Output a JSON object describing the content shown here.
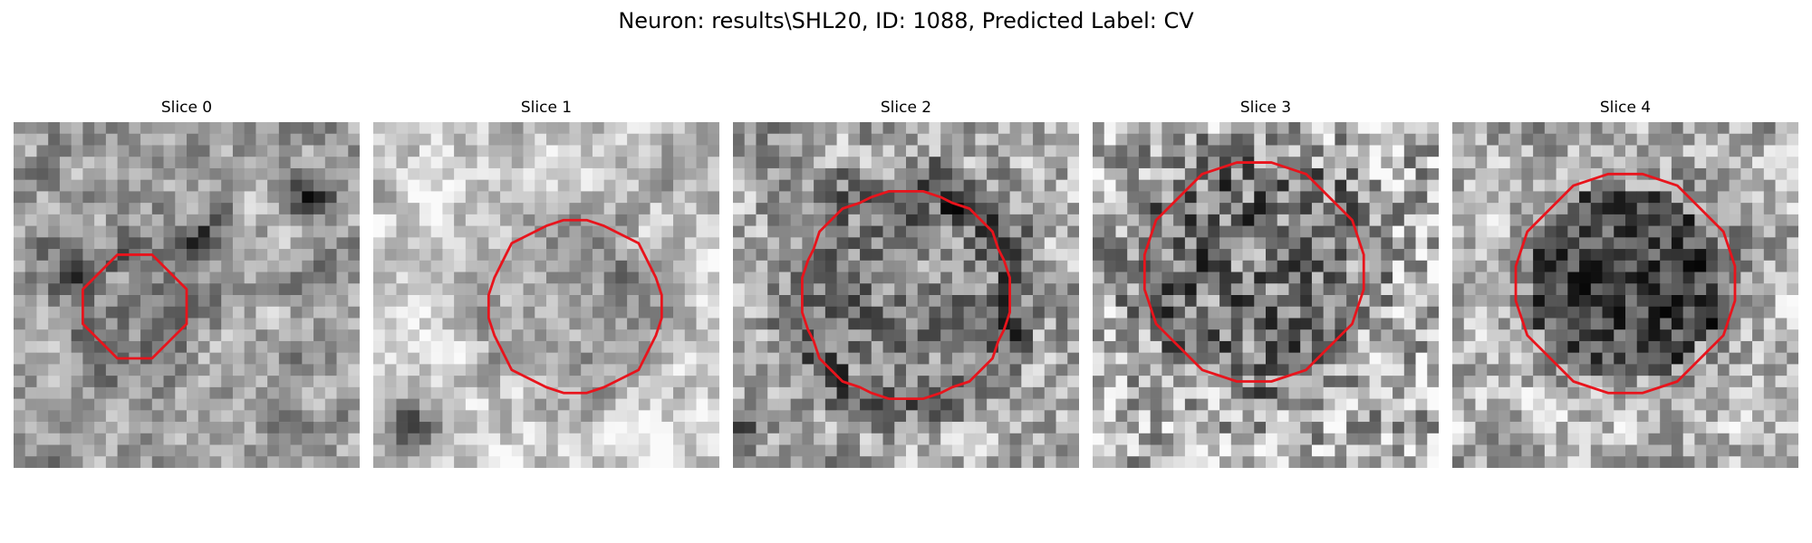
{
  "figure": {
    "title": "Neuron: results\\SHL20, ID: 1088, Predicted Label: CV"
  },
  "colors": {
    "contour": "#e8141c",
    "background": "#ffffff"
  },
  "image": {
    "colormap": "gray",
    "grid_size": 30,
    "axes": "off"
  },
  "slices": [
    {
      "title": "Slice 0",
      "seed": 11,
      "smooth": 0.55,
      "base": 0.62,
      "dark_ring": 0.38,
      "inner": 0.55,
      "center": [
        16,
        10.5
      ],
      "radius": 4.5,
      "darkspots": [
        [
          6,
          25,
          0.45,
          3
        ],
        [
          9,
          16,
          0.35,
          3
        ],
        [
          12,
          4,
          0.3,
          4
        ]
      ]
    },
    {
      "title": "Slice 1",
      "seed": 23,
      "smooth": 0.6,
      "base": 0.8,
      "dark_ring": 0.25,
      "inner": 0.62,
      "center": [
        16,
        17.5
      ],
      "radius": 7.5,
      "darkspots": [
        [
          26,
          3,
          0.6,
          3
        ],
        [
          3,
          25,
          0.35,
          3
        ],
        [
          1,
          12,
          0.2,
          3
        ]
      ]
    },
    {
      "title": "Slice 2",
      "seed": 37,
      "smooth": 0.35,
      "base": 0.65,
      "dark_ring": 0.5,
      "inner": 0.5,
      "center": [
        15,
        15
      ],
      "radius": 9.0,
      "darkspots": [
        [
          26,
          1,
          0.4,
          2
        ],
        [
          7,
          19,
          0.4,
          2
        ]
      ]
    },
    {
      "title": "Slice 3",
      "seed": 51,
      "smooth": 0.1,
      "base": 0.68,
      "dark_ring": 0.3,
      "inner": 0.45,
      "center": [
        13,
        14
      ],
      "radius": 9.5,
      "darkspots": []
    },
    {
      "title": "Slice 4",
      "seed": 67,
      "smooth": 0.4,
      "base": 0.7,
      "dark_ring": 0.15,
      "inner": 0.3,
      "center": [
        14,
        15
      ],
      "radius": 9.5,
      "darkspots": []
    }
  ]
}
